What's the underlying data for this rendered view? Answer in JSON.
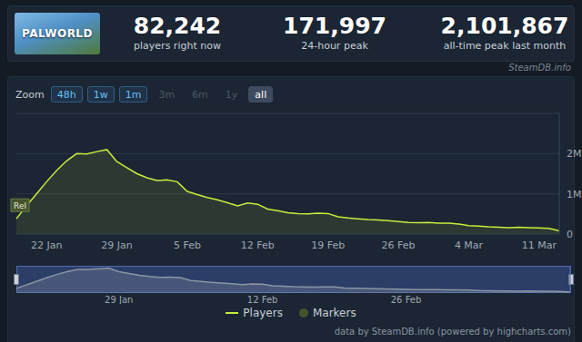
{
  "header": {
    "image_text": "PALWORLD",
    "stats": [
      {
        "value": "82,242",
        "label": "players right now"
      },
      {
        "value": "171,997",
        "label": "24-hour peak"
      },
      {
        "value": "2,101,867",
        "label": "all-time peak last month"
      }
    ],
    "source": "SteamDB.info"
  },
  "zoom": {
    "label": "Zoom",
    "options": [
      {
        "label": "48h",
        "enabled": true,
        "selected": false
      },
      {
        "label": "1w",
        "enabled": true,
        "selected": false
      },
      {
        "label": "1m",
        "enabled": true,
        "selected": false
      },
      {
        "label": "3m",
        "enabled": false,
        "selected": false
      },
      {
        "label": "6m",
        "enabled": false,
        "selected": false
      },
      {
        "label": "1y",
        "enabled": false,
        "selected": false
      },
      {
        "label": "all",
        "enabled": true,
        "selected": true
      }
    ]
  },
  "chart_data": [
    {
      "type": "area",
      "categories": [
        null,
        null,
        null,
        "22 Jan",
        null,
        null,
        null,
        null,
        null,
        null,
        "29 Jan",
        null,
        null,
        null,
        null,
        null,
        null,
        "5 Feb",
        null,
        null,
        null,
        null,
        null,
        null,
        "12 Feb",
        null,
        null,
        null,
        null,
        null,
        null,
        "19 Feb",
        null,
        null,
        null,
        null,
        null,
        null,
        "26 Feb",
        null,
        null,
        null,
        null,
        null,
        null,
        "4 Mar",
        null,
        null,
        null,
        null,
        null,
        null,
        "11 Mar",
        null,
        null
      ],
      "series": [
        {
          "name": "Players",
          "color": "#c8ec3c",
          "values": [
            380000,
            700000,
            1000000,
            1300000,
            1580000,
            1820000,
            2000000,
            1990000,
            2050000,
            2100000,
            1800000,
            1650000,
            1500000,
            1400000,
            1330000,
            1350000,
            1300000,
            1060000,
            980000,
            910000,
            850000,
            780000,
            700000,
            770000,
            740000,
            620000,
            580000,
            530000,
            510000,
            500000,
            520000,
            510000,
            430000,
            400000,
            380000,
            360000,
            350000,
            330000,
            310000,
            290000,
            280000,
            290000,
            270000,
            270000,
            250000,
            210000,
            200000,
            180000,
            170000,
            160000,
            170000,
            160000,
            150000,
            140000,
            80000
          ]
        }
      ],
      "ylim": [
        0,
        3000000
      ],
      "yticks": [
        0,
        {
          "value": 1000000,
          "label": "1M"
        },
        {
          "value": 2000000,
          "label": "2M"
        }
      ],
      "grid": true,
      "legend": "bottom",
      "annotations": [
        {
          "x": 0,
          "label": "Rel",
          "series": "Markers",
          "color": "#46542e"
        }
      ]
    },
    {
      "type": "area",
      "categories": [
        null,
        null,
        null,
        null,
        null,
        null,
        null,
        null,
        null,
        null,
        "29 Jan",
        null,
        null,
        null,
        null,
        null,
        null,
        null,
        null,
        null,
        null,
        null,
        null,
        null,
        "12 Feb",
        null,
        null,
        null,
        null,
        null,
        null,
        null,
        null,
        null,
        null,
        null,
        null,
        null,
        "26 Feb",
        null,
        null,
        null,
        null,
        null,
        null,
        null,
        null,
        null,
        null,
        null,
        null,
        null,
        null,
        null,
        null
      ],
      "series": [
        {
          "name": "Players",
          "color": "#8a96a3",
          "values": [
            380000,
            700000,
            1000000,
            1300000,
            1580000,
            1820000,
            2000000,
            1990000,
            2050000,
            2100000,
            1800000,
            1650000,
            1500000,
            1400000,
            1330000,
            1350000,
            1300000,
            1060000,
            980000,
            910000,
            850000,
            780000,
            700000,
            770000,
            740000,
            620000,
            580000,
            530000,
            510000,
            500000,
            520000,
            510000,
            430000,
            400000,
            380000,
            360000,
            350000,
            330000,
            310000,
            290000,
            280000,
            290000,
            270000,
            270000,
            250000,
            210000,
            200000,
            180000,
            170000,
            160000,
            170000,
            160000,
            150000,
            140000,
            80000
          ]
        }
      ],
      "ylim": [
        0,
        2300000
      ],
      "yticks": [],
      "tick_labels": "x"
    }
  ],
  "footer": "data by SteamDB.info (powered by highcharts.com)"
}
